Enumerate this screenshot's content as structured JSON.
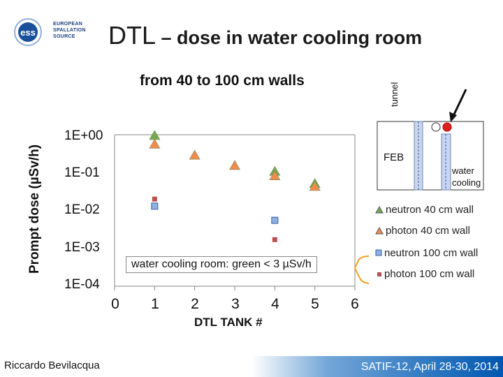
{
  "header": {
    "logo_text": "EUROPEAN SPALLATION SOURCE",
    "title_main": "DTL",
    "title_rest": " – dose in water cooling room"
  },
  "chart_data": {
    "type": "scatter",
    "title": "from 40 to 100 cm walls",
    "xlabel": "DTL TANK #",
    "ylabel": "Prompt dose (µSv/h)",
    "xlim": [
      0,
      6
    ],
    "ylim": [
      0.0001,
      1
    ],
    "log_y": true,
    "x_ticks": [
      "0",
      "1",
      "2",
      "3",
      "4",
      "5",
      "6"
    ],
    "y_ticks": [
      "1E+00",
      "1E-01",
      "1E-02",
      "1E-03",
      "1E-04"
    ],
    "legend_position": "right",
    "series": [
      {
        "name": "neutron 40 cm wall",
        "marker": "triangle",
        "color": "#77a84d",
        "x": [
          1,
          4,
          5
        ],
        "y": [
          0.93,
          0.105,
          0.05
        ]
      },
      {
        "name": "photon 40 cm wall",
        "marker": "triangle",
        "color": "#f08c4a",
        "x": [
          1,
          2,
          3,
          4,
          5
        ],
        "y": [
          0.55,
          0.28,
          0.15,
          0.08,
          0.042
        ]
      },
      {
        "name": "neutron 100 cm wall",
        "marker": "square",
        "color": "#8fb0e0",
        "x": [
          1,
          4
        ],
        "y": [
          0.013,
          0.0055
        ]
      },
      {
        "name": "photon 100 cm wall",
        "marker": "square",
        "color": "#b85050",
        "x": [
          1,
          4
        ],
        "y": [
          0.02,
          0.0017
        ]
      }
    ],
    "annotation": "water cooling room: green < 3 µSv/h"
  },
  "diagram": {
    "tunnel_label": "tunnel",
    "feb_label": "FEB",
    "water_cooling_label_line1": "water",
    "water_cooling_label_line2": "cooling"
  },
  "footer": {
    "author": "Riccardo Bevilacqua",
    "conference": "SATIF-12, April 28-30, 2014",
    "conference_color": "#0057b0"
  }
}
